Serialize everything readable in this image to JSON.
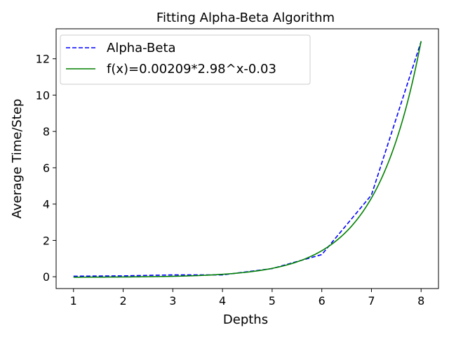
{
  "chart_data": {
    "type": "line",
    "title": "Fitting Alpha-Beta Algorithm",
    "xlabel": "Depths",
    "ylabel": "Average Time/Step",
    "xlim": [
      0.65,
      8.35
    ],
    "ylim": [
      -0.65,
      13.65
    ],
    "xticks": [
      1,
      2,
      3,
      4,
      5,
      6,
      7,
      8
    ],
    "yticks": [
      0,
      2,
      4,
      6,
      8,
      10,
      12
    ],
    "grid": false,
    "legend_position": "upper-left",
    "series": [
      {
        "name": "Alpha-Beta",
        "style": "dashed",
        "color": "#0000ff",
        "x": [
          1,
          2,
          3,
          4,
          5,
          6,
          7,
          8
        ],
        "y": [
          0.03,
          0.05,
          0.1,
          0.1,
          0.45,
          1.22,
          4.5,
          12.95
        ]
      },
      {
        "name": "f(x)=0.00209*2.98^x-0.03",
        "style": "solid",
        "color": "#008000",
        "function": {
          "a": 0.00209,
          "b": 2.98,
          "c": -0.03
        },
        "x_range": [
          1,
          8
        ]
      }
    ]
  }
}
